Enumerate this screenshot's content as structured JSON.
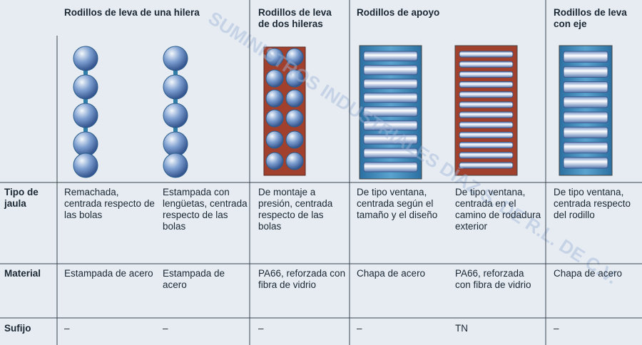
{
  "header": {
    "groups": [
      "Rodillos de leva de una hilera",
      "Rodillos de leva de dos hileras",
      "Rodillos de apoyo",
      "Rodillos de leva con eje"
    ]
  },
  "rows": [
    {
      "label": "Tipo de jaula",
      "cells": [
        "Remachada, centrada respecto de las bolas",
        "Estampada con lengüetas, centrada respecto de las bolas",
        "De montaje a presión, centrada respecto de las bolas",
        "De tipo ventana, centrada según el tamaño y el diseño",
        "De tipo ventana, centrada en el camino de rodadura exterior",
        "De tipo ventana, centrada respecto del rodillo"
      ]
    },
    {
      "label": "Material",
      "cells": [
        "Estampada de acero",
        "Estampada de acero",
        "PA66, reforzada con fibra de vidrio",
        "Chapa de acero",
        "PA66, reforzada con fibra de vidrio",
        "Chapa de acero"
      ]
    },
    {
      "label": "Sufijo",
      "cells": [
        "–",
        "–",
        "–",
        "–",
        "TN",
        "–"
      ]
    }
  ],
  "watermark": "SUMINISTROS INDUSTRIALES DÍAZ S. DE R.L. DE C.V."
}
